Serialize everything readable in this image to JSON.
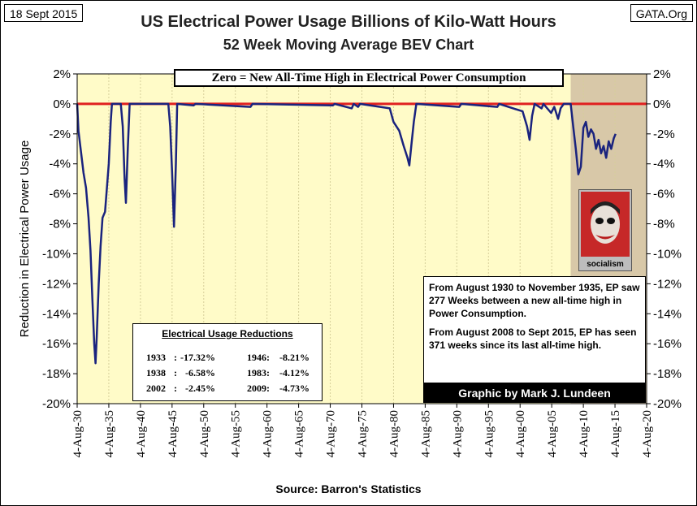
{
  "header": {
    "date": "18 Sept 2015",
    "site": "GATA.Org"
  },
  "title": "US Electrical Power Usage Billions of Kilo-Watt Hours",
  "subtitle": "52 Week Moving Average BEV Chart",
  "banner": "Zero = New All-Time High in Electrical Power Consumption",
  "source": "Source: Barron's Statistics",
  "reductions": {
    "title": "Electrical Usage Reductions",
    "rows": [
      [
        {
          "year": "1933",
          "value": "-17.32%"
        },
        {
          "year": "1946:",
          "value": "-8.21%"
        }
      ],
      [
        {
          "year": "1938",
          "value": "-6.58%"
        },
        {
          "year": "1983:",
          "value": "-4.12%"
        }
      ],
      [
        {
          "year": "2002",
          "value": "-2.45%"
        },
        {
          "year": "2009:",
          "value": "-4.73%"
        }
      ]
    ]
  },
  "note": {
    "para1": "From August 1930 to November 1935, EP saw 277 Weeks between a new all-time high in Power Consumption.",
    "para2": "From August 2008 to Sept 2015, EP has seen 371 weeks since its last all-time high."
  },
  "credit": "Graphic by Mark J. Lundeen",
  "socialism_label": "socialism",
  "chart_data": {
    "type": "line",
    "ylabel": "Reduction in Electrical Power Usage",
    "xlim": [
      1930.6,
      2020.6
    ],
    "ylim": [
      -20,
      2
    ],
    "y_ticks": [
      "2%",
      "0%",
      "-2%",
      "-4%",
      "-6%",
      "-8%",
      "-10%",
      "-12%",
      "-14%",
      "-16%",
      "-18%",
      "-20%"
    ],
    "y_tick_values": [
      2,
      0,
      -2,
      -4,
      -6,
      -8,
      -10,
      -12,
      -14,
      -16,
      -18,
      -20
    ],
    "x_ticks": [
      "4-Aug-30",
      "4-Aug-35",
      "4-Aug-40",
      "4-Aug-45",
      "4-Aug-50",
      "4-Aug-55",
      "4-Aug-60",
      "4-Aug-65",
      "4-Aug-70",
      "4-Aug-75",
      "4-Aug-80",
      "4-Aug-85",
      "4-Aug-90",
      "4-Aug-95",
      "4-Aug-00",
      "4-Aug-05",
      "4-Aug-10",
      "4-Aug-15",
      "4-Aug-20"
    ],
    "reference_line": {
      "y": 0,
      "color": "#e02020"
    },
    "shaded_region": {
      "x": [
        2008.6,
        2020.6
      ],
      "color": "#d8c8a8"
    },
    "series": [
      {
        "color": "#1a237e",
        "points": [
          [
            1930.6,
            0
          ],
          [
            1930.8,
            -1.8
          ],
          [
            1931.2,
            -3.2
          ],
          [
            1931.6,
            -4.6
          ],
          [
            1932.0,
            -5.6
          ],
          [
            1932.4,
            -7.6
          ],
          [
            1932.7,
            -9.8
          ],
          [
            1933.0,
            -13.0
          ],
          [
            1933.3,
            -16.0
          ],
          [
            1933.5,
            -17.3
          ],
          [
            1933.7,
            -15.5
          ],
          [
            1934.0,
            -12.0
          ],
          [
            1934.3,
            -9.5
          ],
          [
            1934.6,
            -7.6
          ],
          [
            1935.0,
            -7.2
          ],
          [
            1935.3,
            -5.6
          ],
          [
            1935.6,
            -4.0
          ],
          [
            1935.9,
            -1.2
          ],
          [
            1936.1,
            0
          ],
          [
            1937.5,
            0
          ],
          [
            1937.8,
            -1.5
          ],
          [
            1938.1,
            -5.0
          ],
          [
            1938.3,
            -6.6
          ],
          [
            1938.6,
            -3.0
          ],
          [
            1938.9,
            0
          ],
          [
            1945.0,
            0
          ],
          [
            1945.3,
            -1.5
          ],
          [
            1945.6,
            -4.5
          ],
          [
            1945.9,
            -8.2
          ],
          [
            1946.2,
            -4.0
          ],
          [
            1946.4,
            0
          ],
          [
            1949.0,
            -0.1
          ],
          [
            1949.3,
            0
          ],
          [
            1958.0,
            -0.2
          ],
          [
            1958.3,
            0
          ],
          [
            1971.0,
            -0.1
          ],
          [
            1971.3,
            0
          ],
          [
            1974.0,
            -0.3
          ],
          [
            1974.3,
            0
          ],
          [
            1975.0,
            -0.2
          ],
          [
            1975.3,
            0
          ],
          [
            1980.0,
            -0.3
          ],
          [
            1980.6,
            -1.2
          ],
          [
            1981.5,
            -1.8
          ],
          [
            1982.2,
            -2.8
          ],
          [
            1982.8,
            -3.6
          ],
          [
            1983.1,
            -4.1
          ],
          [
            1983.4,
            -2.8
          ],
          [
            1983.8,
            -1.2
          ],
          [
            1984.2,
            0
          ],
          [
            1991.0,
            -0.2
          ],
          [
            1991.3,
            0
          ],
          [
            1997.0,
            -0.2
          ],
          [
            1997.3,
            0
          ],
          [
            2001.0,
            -0.5
          ],
          [
            2001.7,
            -1.5
          ],
          [
            2002.1,
            -2.4
          ],
          [
            2002.5,
            -0.8
          ],
          [
            2002.9,
            0
          ],
          [
            2004.0,
            -0.3
          ],
          [
            2004.3,
            0
          ],
          [
            2005.5,
            -0.6
          ],
          [
            2006.0,
            -0.2
          ],
          [
            2006.6,
            -1.0
          ],
          [
            2007.0,
            -0.3
          ],
          [
            2007.5,
            0
          ],
          [
            2008.6,
            0
          ],
          [
            2009.0,
            -1.5
          ],
          [
            2009.4,
            -3.0
          ],
          [
            2009.8,
            -4.7
          ],
          [
            2010.2,
            -4.2
          ],
          [
            2010.6,
            -1.6
          ],
          [
            2011.0,
            -1.2
          ],
          [
            2011.4,
            -2.2
          ],
          [
            2011.8,
            -1.7
          ],
          [
            2012.2,
            -2.0
          ],
          [
            2012.6,
            -3.0
          ],
          [
            2013.0,
            -2.4
          ],
          [
            2013.4,
            -3.3
          ],
          [
            2013.8,
            -2.8
          ],
          [
            2014.2,
            -3.6
          ],
          [
            2014.6,
            -2.5
          ],
          [
            2015.0,
            -3.0
          ],
          [
            2015.4,
            -2.3
          ],
          [
            2015.7,
            -2.0
          ]
        ]
      }
    ]
  }
}
